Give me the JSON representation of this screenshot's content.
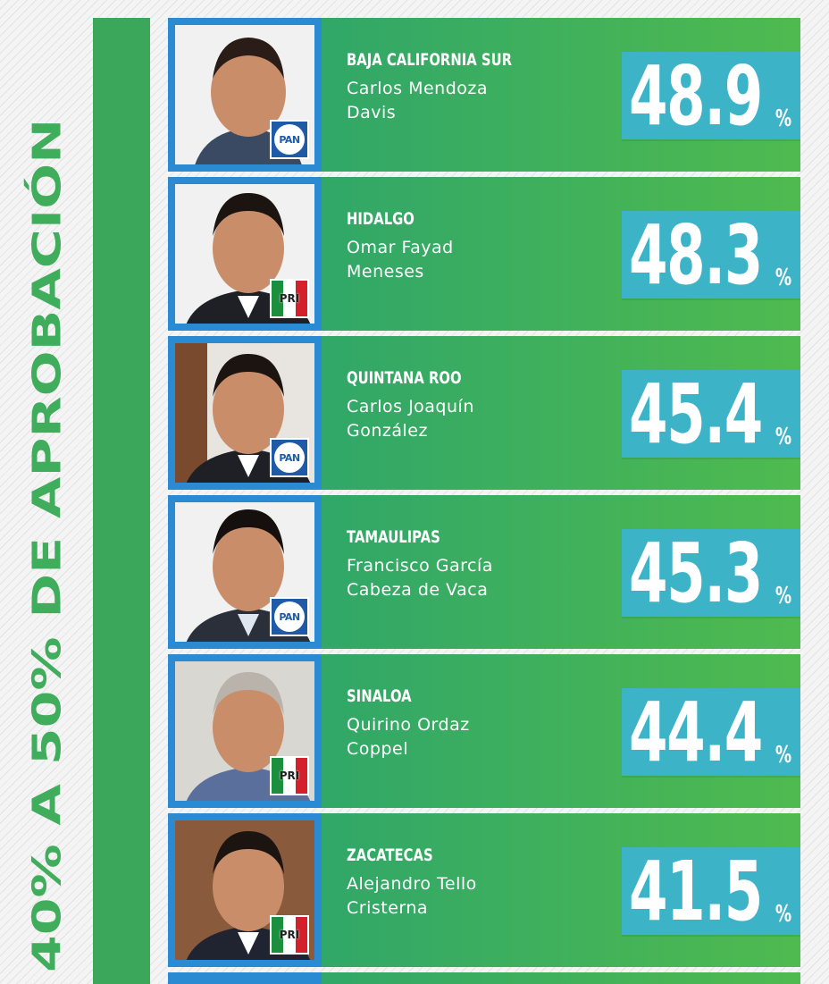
{
  "side_title": "40% A 50% DE APROBACIÓN",
  "colors": {
    "accent_green": "#3fad5b",
    "row_green": "#4fba4f",
    "value_box": "#3cb3c7",
    "photo_border": "#2a8bd3",
    "pan_blue": "#1f5aa6"
  },
  "governors": [
    {
      "state": "BAJA CALIFORNIA SUR",
      "name": "Carlos Mendoza Davis",
      "value": "48.9",
      "pct": "%",
      "party": "PAN"
    },
    {
      "state": "HIDALGO",
      "name": "Omar Fayad Meneses",
      "value": "48.3",
      "pct": "%",
      "party": "PRI"
    },
    {
      "state": "QUINTANA ROO",
      "name": "Carlos Joaquín González",
      "value": "45.4",
      "pct": "%",
      "party": "PAN"
    },
    {
      "state": "TAMAULIPAS",
      "name": "Francisco García Cabeza de Vaca",
      "value": "45.3",
      "pct": "%",
      "party": "PAN"
    },
    {
      "state": "SINALOA",
      "name": "Quirino Ordaz Coppel",
      "value": "44.4",
      "pct": "%",
      "party": "PRI"
    },
    {
      "state": "ZACATECAS",
      "name": "Alejandro Tello Cristerna",
      "value": "41.5",
      "pct": "%",
      "party": "PRI"
    }
  ]
}
